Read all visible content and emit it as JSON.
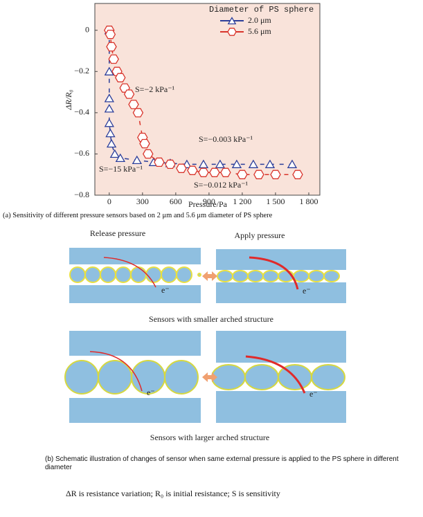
{
  "chart_data": {
    "type": "scatter",
    "x_label": "Pressure/Pa",
    "y_label": "ΔR/R₀",
    "xlim": [
      -130,
      1900
    ],
    "ylim": [
      -0.8,
      0.13
    ],
    "xticks": [
      0,
      300,
      600,
      900,
      {
        "value": 1200,
        "label": "1 200"
      },
      {
        "value": 1500,
        "label": "1 500"
      },
      {
        "value": 1800,
        "label": "1 800"
      }
    ],
    "yticks": [
      0,
      {
        "value": -0.2,
        "label": "−0.2"
      },
      {
        "value": -0.4,
        "label": "−0.4"
      },
      {
        "value": -0.6,
        "label": "−0.6"
      },
      {
        "value": -0.8,
        "label": "−0.8"
      }
    ],
    "background": "#f9e3da",
    "legend_title": "Diameter of PS sphere",
    "legend": "upper right",
    "series": [
      {
        "name": "2.0 μm",
        "color": "#2b3e9a",
        "marker": "triangle",
        "x": [
          0,
          0,
          0,
          0,
          0,
          10,
          20,
          50,
          100,
          250,
          400,
          550,
          700,
          850,
          1000,
          1150,
          1300,
          1450,
          1650
        ],
        "values": [
          0,
          -0.2,
          -0.33,
          -0.38,
          -0.45,
          -0.5,
          -0.55,
          -0.6,
          -0.62,
          -0.63,
          -0.64,
          -0.645,
          -0.65,
          -0.65,
          -0.65,
          -0.65,
          -0.65,
          -0.65,
          -0.65
        ]
      },
      {
        "name": "5.6 μm",
        "color": "#d9342b",
        "marker": "hexagon",
        "x": [
          0,
          10,
          20,
          40,
          70,
          100,
          140,
          180,
          220,
          260,
          300,
          320,
          350,
          450,
          550,
          650,
          750,
          850,
          950,
          1050,
          1200,
          1350,
          1500,
          1700
        ],
        "values": [
          0,
          -0.02,
          -0.08,
          -0.14,
          -0.2,
          -0.23,
          -0.28,
          -0.31,
          -0.36,
          -0.4,
          -0.52,
          -0.55,
          -0.6,
          -0.64,
          -0.65,
          -0.67,
          -0.68,
          -0.69,
          -0.69,
          -0.69,
          -0.7,
          -0.7,
          -0.7,
          -0.7
        ]
      }
    ],
    "annotations": [
      "S=−2 kPa⁻¹",
      "S=−0.003 kPa⁻¹",
      "S=−15 kPa⁻¹",
      "S=−0.012 kPa⁻¹"
    ]
  },
  "captions": {
    "a": "(a) Sensitivity of different pressure sensors based on 2 μm and 5.6 μm diameter of PS sphere",
    "b": "(b) Schematic illustration of changes of sensor when same external pressure is applied to the PS sphere in different diameter"
  },
  "schematic": {
    "release": "Release pressure",
    "apply": "Apply pressure",
    "small": "Sensors with smaller arched structure",
    "large": "Sensors with larger arched structure",
    "electron": [
      "e⁻",
      "e⁻",
      "e⁻",
      "e⁻"
    ]
  },
  "note": "ΔR is resistance variation; R₀ is initial resistance; S is sensitivity"
}
